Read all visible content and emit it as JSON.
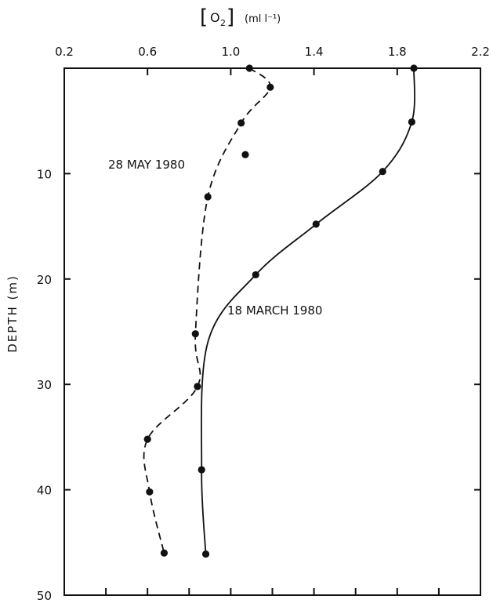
{
  "chart_data": {
    "type": "line",
    "x_axis": {
      "label_bracket_open": "[",
      "label_species": "O",
      "label_subscript": "2",
      "label_bracket_close": "]",
      "label_unit": "(ml l⁻¹)",
      "position": "top",
      "range": [
        0.2,
        2.2
      ],
      "ticks": [
        0.2,
        0.6,
        1.0,
        1.4,
        1.8,
        2.2
      ],
      "tick_labels": [
        "0.2",
        "0.6",
        "1.0",
        "1.4",
        "1.8",
        "2.2"
      ]
    },
    "y_axis": {
      "label": "DEPTH (m)",
      "inverted": true,
      "range": [
        0,
        50
      ],
      "ticks": [
        10,
        20,
        30,
        40,
        50
      ],
      "tick_labels": [
        "10",
        "20",
        "30",
        "40",
        "50"
      ]
    },
    "series": [
      {
        "name": "28 MAY 1980",
        "line_style": "dashed",
        "points": [
          {
            "x": 1.09,
            "y": 0
          },
          {
            "x": 1.19,
            "y": 1.8
          },
          {
            "x": 1.05,
            "y": 5.2
          },
          {
            "x": 1.07,
            "y": 8.2
          },
          {
            "x": 0.89,
            "y": 12.2
          },
          {
            "x": 0.83,
            "y": 25.2
          },
          {
            "x": 0.84,
            "y": 30.2
          },
          {
            "x": 0.6,
            "y": 35.2
          },
          {
            "x": 0.61,
            "y": 40.2
          },
          {
            "x": 0.68,
            "y": 46
          }
        ],
        "curve_path": [
          [
            1.09,
            0
          ],
          [
            1.19,
            1.8
          ],
          [
            1.05,
            5.2
          ],
          [
            0.89,
            12.2
          ],
          [
            0.83,
            25.2
          ],
          [
            0.84,
            30.2
          ],
          [
            0.6,
            35.2
          ],
          [
            0.61,
            40.2
          ],
          [
            0.68,
            46
          ]
        ]
      },
      {
        "name": "18 MARCH 1980",
        "line_style": "solid",
        "points": [
          {
            "x": 1.88,
            "y": 0
          },
          {
            "x": 1.87,
            "y": 5.1
          },
          {
            "x": 1.73,
            "y": 9.8
          },
          {
            "x": 1.41,
            "y": 14.8
          },
          {
            "x": 1.12,
            "y": 19.6
          },
          {
            "x": 0.86,
            "y": 38.1
          },
          {
            "x": 0.88,
            "y": 46.1
          }
        ],
        "curve_path": [
          [
            1.88,
            0
          ],
          [
            1.87,
            5.1
          ],
          [
            1.73,
            9.8
          ],
          [
            1.41,
            14.8
          ],
          [
            1.12,
            19.6
          ],
          [
            0.89,
            26.0
          ],
          [
            0.86,
            38.1
          ],
          [
            0.88,
            46.1
          ]
        ]
      }
    ]
  }
}
